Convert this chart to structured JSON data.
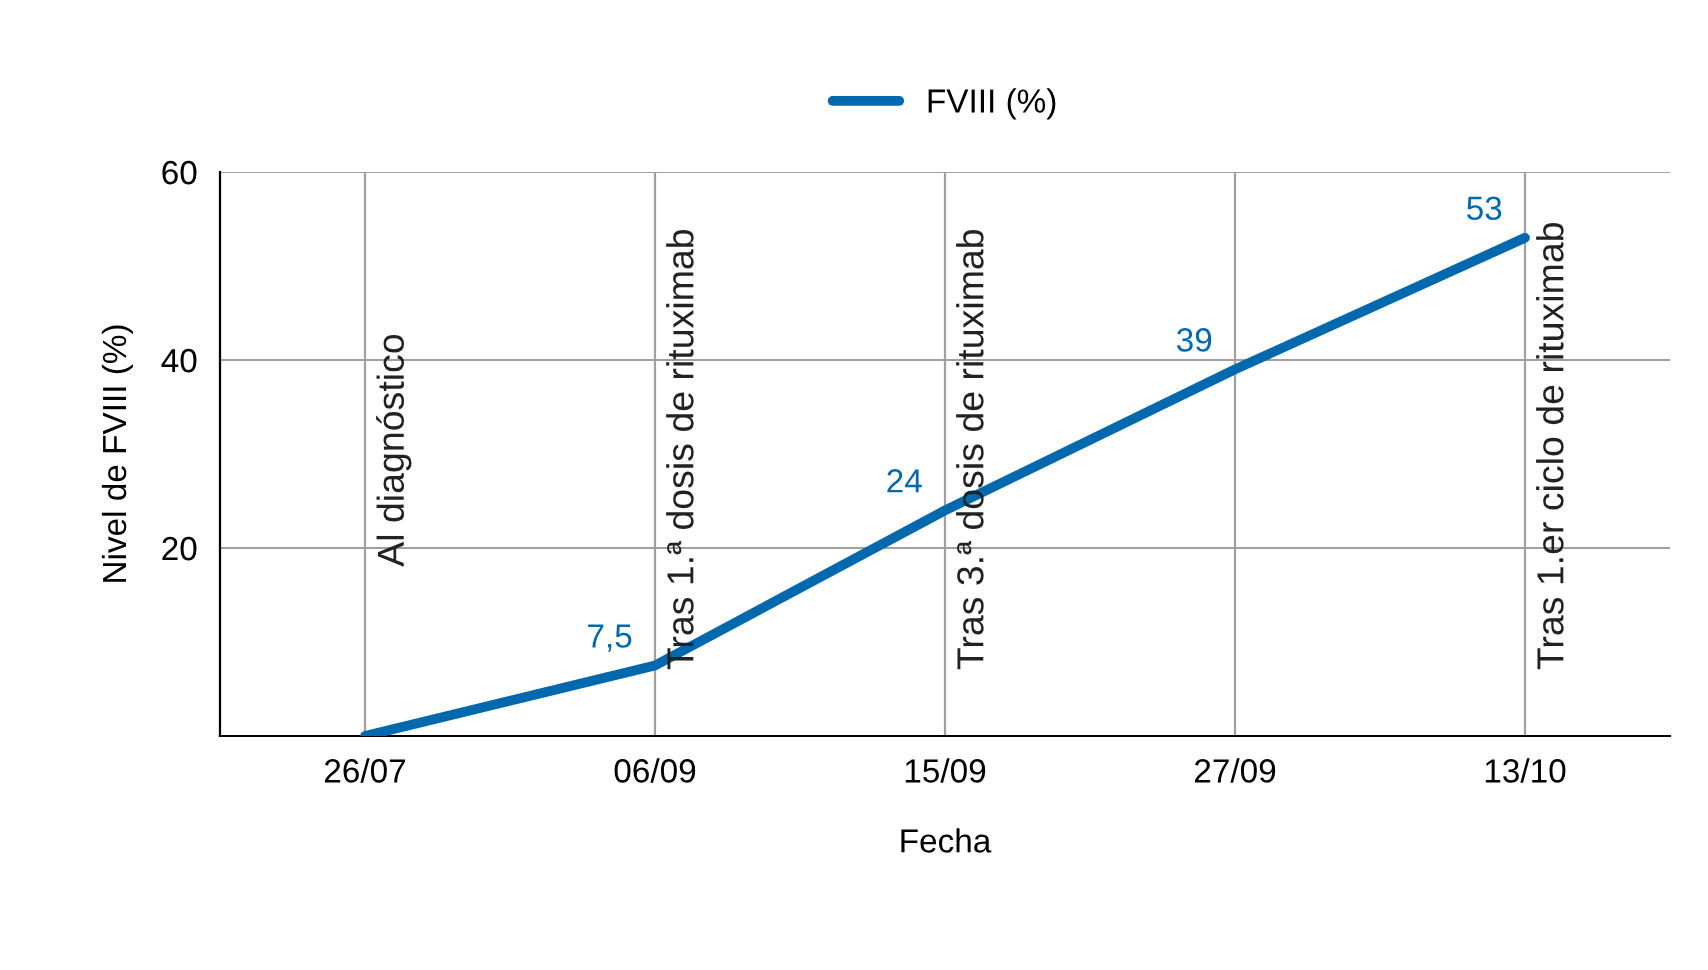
{
  "chart_data": {
    "type": "line",
    "xlabel": "Fecha",
    "ylabel": "Nivel de FVIII (%)",
    "categories": [
      "26/07",
      "06/09",
      "15/09",
      "27/09",
      "13/10"
    ],
    "series": [
      {
        "name": "FVIII (%)",
        "color": "#0068ad",
        "values": [
          0,
          7.5,
          24,
          39,
          53
        ],
        "value_labels": [
          null,
          "7,5",
          "24",
          "39",
          "53"
        ]
      }
    ],
    "ylim": [
      0,
      60
    ],
    "yticks": [
      20,
      40,
      60
    ],
    "grid": "y",
    "legend": "top",
    "marker": "none",
    "line_style": "solid",
    "ref_lines": [
      {
        "axis": "x",
        "value": "26/07",
        "label": "Al diagnóstico",
        "color": "#a0a0a0"
      },
      {
        "axis": "x",
        "value": "06/09",
        "label": "Tras 1.ª dosis de rituximab",
        "color": "#a0a0a0"
      },
      {
        "axis": "x",
        "value": "15/09",
        "label": "Tras 3.ª dosis de rituximab",
        "color": "#a0a0a0"
      },
      {
        "axis": "x",
        "value": "27/09",
        "color": "#a0a0a0"
      },
      {
        "axis": "x",
        "value": "13/10",
        "label": "Tras 1.er ciclo de rituximab",
        "color": "#a0a0a0"
      }
    ]
  }
}
